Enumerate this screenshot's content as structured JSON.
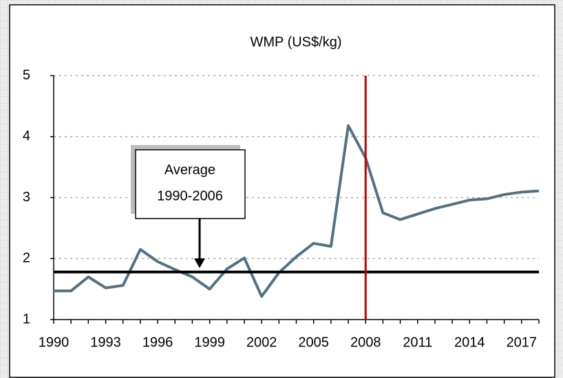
{
  "chart_data": {
    "type": "line",
    "title": "WMP (US$/kg)",
    "x": [
      1990,
      1991,
      1992,
      1993,
      1994,
      1995,
      1996,
      1997,
      1998,
      1999,
      2000,
      2001,
      2002,
      2003,
      2004,
      2005,
      2006,
      2007,
      2008,
      2009,
      2010,
      2011,
      2012,
      2013,
      2014,
      2015,
      2016,
      2017,
      2018
    ],
    "values": [
      1.47,
      1.47,
      1.7,
      1.52,
      1.56,
      2.15,
      1.95,
      1.82,
      1.7,
      1.5,
      1.83,
      2.01,
      1.38,
      1.77,
      2.03,
      2.25,
      2.2,
      4.18,
      3.65,
      2.75,
      2.64,
      2.73,
      2.82,
      2.89,
      2.96,
      2.98,
      3.05,
      3.09,
      3.11
    ],
    "color": "#557080",
    "xlim": [
      1990,
      2018
    ],
    "xticks": [
      1990,
      1993,
      1996,
      1999,
      2002,
      2005,
      2008,
      2011,
      2014,
      2017
    ],
    "ylim": [
      1,
      5
    ],
    "yticks": [
      1,
      2,
      3,
      4,
      5
    ],
    "grid": true,
    "average_line": {
      "value": 1.78,
      "color": "#000000"
    },
    "vline": {
      "x": 2008,
      "color": "#c00000"
    },
    "annotation": [
      "Average",
      "1990-2006"
    ]
  }
}
